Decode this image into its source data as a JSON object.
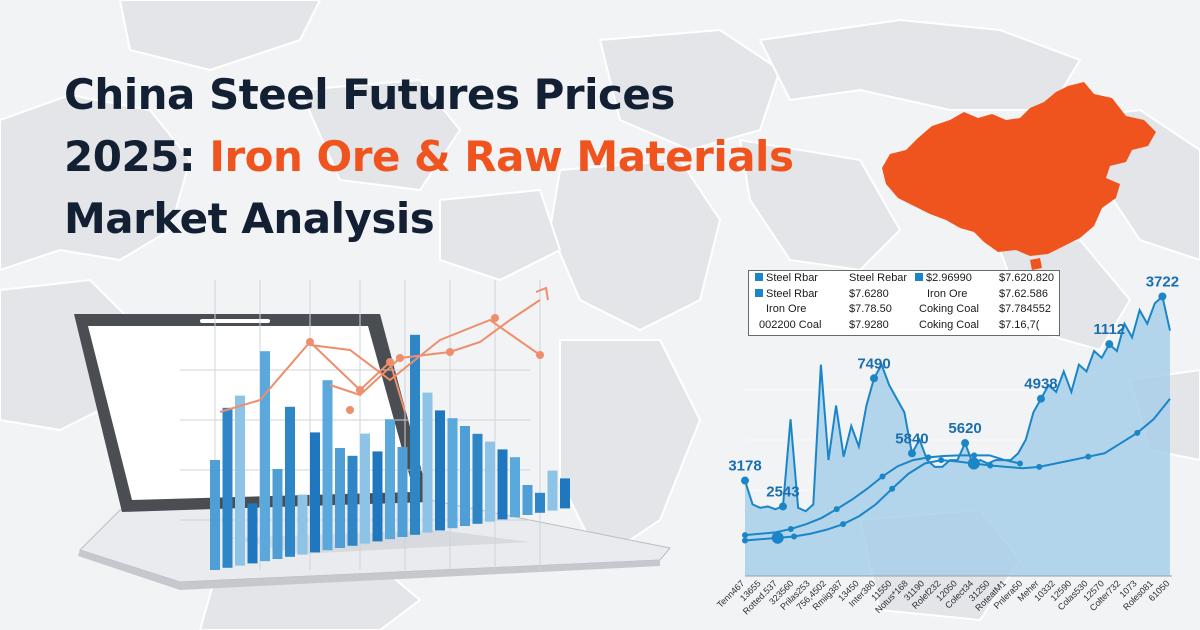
{
  "headline": {
    "line1": "China Steel Futures Prices",
    "line2_prefix": "2025: ",
    "line2_accent": "Iron Ore & Raw Materials",
    "line3": "Market Analysis"
  },
  "colors": {
    "title": "#132033",
    "accent": "#f0541e",
    "china_map": "#f0541e",
    "chart_line": "#1a86c8",
    "chart_fill": "#a8cfe9"
  },
  "legend": {
    "rows": [
      [
        {
          "swatch": true,
          "text": "Steel Rbar"
        },
        {
          "swatch": false,
          "text": "Steel Rebar"
        },
        {
          "swatch": true,
          "text": "$2.96990"
        },
        {
          "swatch": false,
          "text": "$7.620.820"
        }
      ],
      [
        {
          "swatch": true,
          "text": "Steel Rbar"
        },
        {
          "swatch": false,
          "text": "$7.6280"
        },
        {
          "swatch": false,
          "text": "Iron Ore"
        },
        {
          "swatch": false,
          "text": "$7.62.586"
        }
      ],
      [
        {
          "swatch": false,
          "text": "Iron Ore"
        },
        {
          "swatch": false,
          "text": "$7.78.50"
        },
        {
          "swatch": false,
          "text": "Coking Coal"
        },
        {
          "swatch": false,
          "text": "$7.784552"
        }
      ],
      [
        {
          "swatch": false,
          "text": "002200 Coal"
        },
        {
          "swatch": false,
          "text": "$7.9280"
        },
        {
          "swatch": false,
          "text": "Coking Coal"
        },
        {
          "swatch": false,
          "text": "$7.16,7("
        }
      ]
    ]
  },
  "chart_data": {
    "type": "area",
    "title": "",
    "xlabel": "",
    "ylabel": "",
    "grid": true,
    "ylim": [
      0,
      4400
    ],
    "x_tick_labels": [
      "Tenn467",
      "13655",
      "Rotted.537",
      "323560",
      "Prilas253",
      "756,4502",
      "Rmiig387",
      "13450",
      "Inter380",
      "11550",
      "Notus*168",
      "31190",
      "Rolef232",
      "12050",
      "Colect34",
      "31250",
      "RoteatM1",
      "Pnlera50",
      "Meher",
      "10332",
      "12590",
      "Colas530",
      "12570",
      "Colter732",
      "1073",
      "Roles081",
      "61050"
    ],
    "annotations": [
      {
        "label": "3178",
        "index": 0
      },
      {
        "label": "2543",
        "index": 5
      },
      {
        "label": "7490",
        "index": 17
      },
      {
        "label": "5840",
        "index": 22
      },
      {
        "label": "5620",
        "index": 29
      },
      {
        "label": "4938",
        "index": 39
      },
      {
        "label": "1112",
        "index": 48
      },
      {
        "label": "3722",
        "index": 55
      }
    ],
    "series": [
      {
        "values": [
          1400,
          1050,
          1000,
          1020,
          980,
          1020,
          2300,
          1000,
          950,
          1050,
          3100,
          1700,
          2500,
          1750,
          2200,
          1900,
          2500,
          2900,
          3100,
          2800,
          2600,
          2400,
          1800,
          2000,
          1700,
          1600,
          1600,
          1700,
          1700,
          1950,
          1650,
          1700,
          1650,
          1700,
          1700,
          1700,
          1800,
          2000,
          2400,
          2600,
          2800,
          2700,
          3000,
          2700,
          3100,
          3000,
          3300,
          3200,
          3400,
          3300,
          3700,
          3500,
          3900,
          3700,
          4000,
          4100,
          3600
        ]
      },
      {
        "values": [
          600,
          620,
          640,
          690,
          760,
          850,
          980,
          1120,
          1280,
          1460,
          1610,
          1700,
          1740,
          1760,
          1770,
          1770,
          1770,
          1700,
          1650
        ]
      },
      {
        "values": [
          520,
          540,
          560,
          580,
          620,
          680,
          760,
          880,
          1050,
          1280,
          1500,
          1650,
          1700,
          1680,
          1650,
          1620,
          1600,
          1580,
          1600,
          1650,
          1700,
          1750,
          1800,
          1950,
          2100,
          2300,
          2600
        ]
      }
    ]
  }
}
